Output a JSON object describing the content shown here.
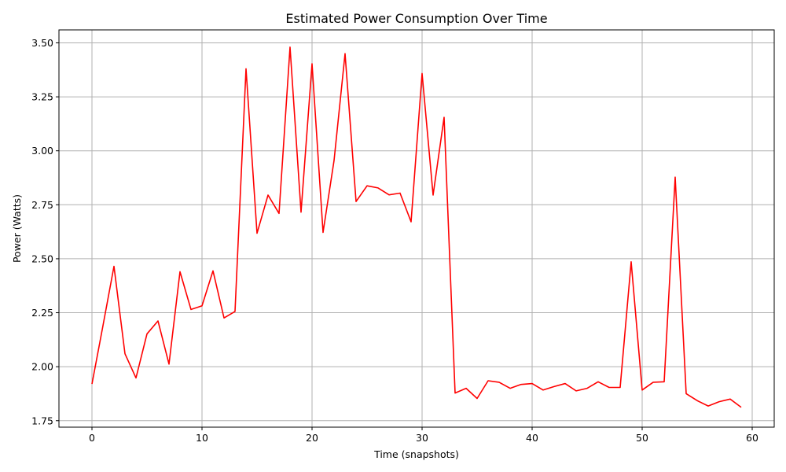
{
  "chart_data": {
    "type": "line",
    "title": "Estimated Power Consumption Over Time",
    "xlabel": "Time (snapshots)",
    "ylabel": "Power (Watts)",
    "xlim": [
      -3,
      62
    ],
    "ylim": [
      1.72,
      3.56
    ],
    "xticks": [
      0,
      10,
      20,
      30,
      40,
      50,
      60
    ],
    "yticks": [
      1.75,
      2.0,
      2.25,
      2.5,
      2.75,
      3.0,
      3.25,
      3.5
    ],
    "ytick_labels": [
      "1.75",
      "2.00",
      "2.25",
      "2.50",
      "2.75",
      "3.00",
      "3.25",
      "3.50"
    ],
    "grid": true,
    "series": [
      {
        "color": "#ff0000",
        "x": [
          0,
          1,
          2,
          3,
          4,
          5,
          6,
          7,
          8,
          9,
          10,
          11,
          12,
          13,
          14,
          15,
          16,
          17,
          18,
          19,
          20,
          21,
          22,
          23,
          24,
          25,
          26,
          27,
          28,
          29,
          30,
          31,
          32,
          33,
          34,
          35,
          36,
          37,
          38,
          39,
          40,
          41,
          42,
          43,
          44,
          45,
          46,
          47,
          48,
          49,
          50,
          51,
          52,
          53,
          54,
          55,
          56,
          57,
          58,
          59
        ],
        "y": [
          1.92,
          2.19,
          2.465,
          2.06,
          1.948,
          2.152,
          2.212,
          2.012,
          2.44,
          2.265,
          2.282,
          2.444,
          2.226,
          2.256,
          3.38,
          2.618,
          2.795,
          2.71,
          3.48,
          2.716,
          3.403,
          2.622,
          2.955,
          3.45,
          2.765,
          2.838,
          2.828,
          2.796,
          2.804,
          2.671,
          3.358,
          2.795,
          3.155,
          1.878,
          1.9,
          1.853,
          1.935,
          1.928,
          1.9,
          1.918,
          1.922,
          1.892,
          1.908,
          1.922,
          1.888,
          1.9,
          1.93,
          1.904,
          1.904,
          2.486,
          1.892,
          1.928,
          1.93,
          2.878,
          1.875,
          1.843,
          1.818,
          1.838,
          1.85,
          1.812
        ]
      }
    ]
  }
}
